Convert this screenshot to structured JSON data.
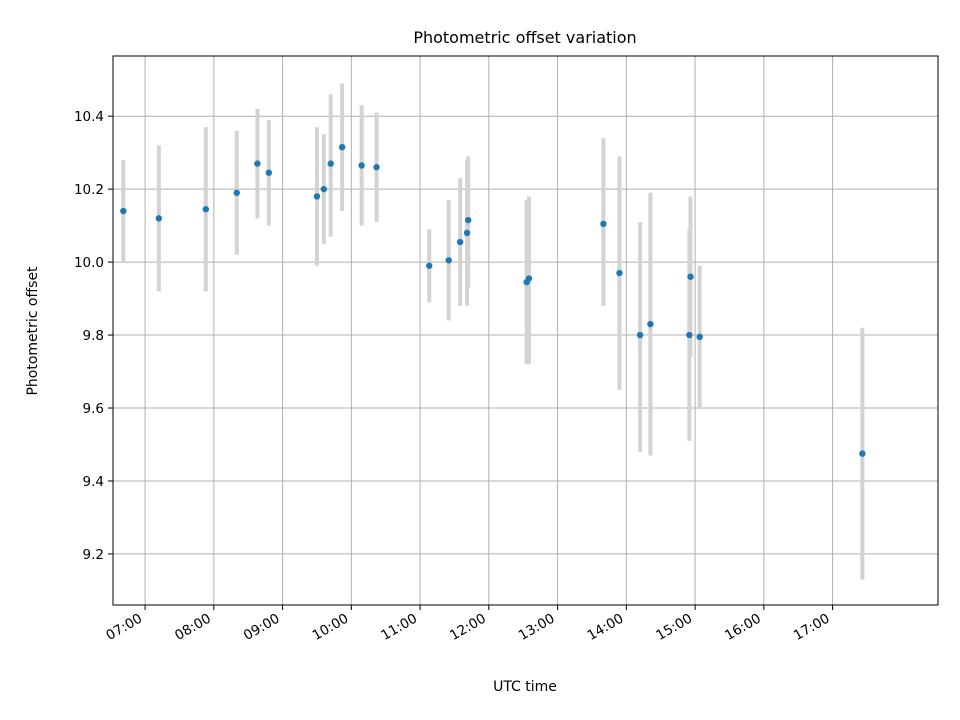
{
  "chart_data": {
    "type": "scatter",
    "title": "Photometric offset variation",
    "xlabel": "UTC time",
    "ylabel": "Photometric offset",
    "xlim": [
      "06:32",
      "18:32"
    ],
    "ylim": [
      9.06,
      10.565
    ],
    "x_ticks": [
      "07:00",
      "08:00",
      "09:00",
      "10:00",
      "11:00",
      "12:00",
      "13:00",
      "14:00",
      "15:00",
      "16:00",
      "17:00"
    ],
    "y_ticks": [
      "9.2",
      "9.4",
      "9.6",
      "9.8",
      "10.0",
      "10.2",
      "10.4"
    ],
    "grid": true,
    "point_color": "#1f77b4",
    "errorbar_color": "#d3d3d3",
    "points": [
      {
        "x": "06:41",
        "y": 10.14,
        "lo": 10.0,
        "hi": 10.28
      },
      {
        "x": "07:12",
        "y": 10.12,
        "lo": 9.92,
        "hi": 10.32
      },
      {
        "x": "07:53",
        "y": 10.145,
        "lo": 9.92,
        "hi": 10.37
      },
      {
        "x": "08:20",
        "y": 10.19,
        "lo": 10.02,
        "hi": 10.36
      },
      {
        "x": "08:38",
        "y": 10.27,
        "lo": 10.12,
        "hi": 10.42
      },
      {
        "x": "08:48",
        "y": 10.245,
        "lo": 10.1,
        "hi": 10.39
      },
      {
        "x": "09:30",
        "y": 10.18,
        "lo": 9.99,
        "hi": 10.37
      },
      {
        "x": "09:36",
        "y": 10.2,
        "lo": 10.05,
        "hi": 10.35
      },
      {
        "x": "09:42",
        "y": 10.27,
        "lo": 10.07,
        "hi": 10.46
      },
      {
        "x": "09:52",
        "y": 10.315,
        "lo": 10.14,
        "hi": 10.49
      },
      {
        "x": "10:09",
        "y": 10.265,
        "lo": 10.1,
        "hi": 10.43
      },
      {
        "x": "10:22",
        "y": 10.26,
        "lo": 10.11,
        "hi": 10.41
      },
      {
        "x": "11:08",
        "y": 9.99,
        "lo": 9.89,
        "hi": 10.09
      },
      {
        "x": "11:25",
        "y": 10.005,
        "lo": 9.84,
        "hi": 10.17
      },
      {
        "x": "11:35",
        "y": 10.055,
        "lo": 9.88,
        "hi": 10.23
      },
      {
        "x": "11:41",
        "y": 10.08,
        "lo": 9.88,
        "hi": 10.28
      },
      {
        "x": "11:42",
        "y": 10.115,
        "lo": 9.93,
        "hi": 10.29
      },
      {
        "x": "12:33",
        "y": 9.945,
        "lo": 9.72,
        "hi": 10.17
      },
      {
        "x": "12:35",
        "y": 9.955,
        "lo": 9.72,
        "hi": 10.18
      },
      {
        "x": "13:40",
        "y": 10.105,
        "lo": 9.88,
        "hi": 10.34
      },
      {
        "x": "13:54",
        "y": 9.97,
        "lo": 9.65,
        "hi": 10.29
      },
      {
        "x": "14:12",
        "y": 9.8,
        "lo": 9.48,
        "hi": 10.11
      },
      {
        "x": "14:21",
        "y": 9.83,
        "lo": 9.47,
        "hi": 10.19
      },
      {
        "x": "14:55",
        "y": 9.8,
        "lo": 9.51,
        "hi": 10.09
      },
      {
        "x": "14:56",
        "y": 9.96,
        "lo": 9.74,
        "hi": 10.18
      },
      {
        "x": "15:04",
        "y": 9.795,
        "lo": 9.6,
        "hi": 9.99
      },
      {
        "x": "17:26",
        "y": 9.475,
        "lo": 9.13,
        "hi": 9.82
      }
    ]
  }
}
